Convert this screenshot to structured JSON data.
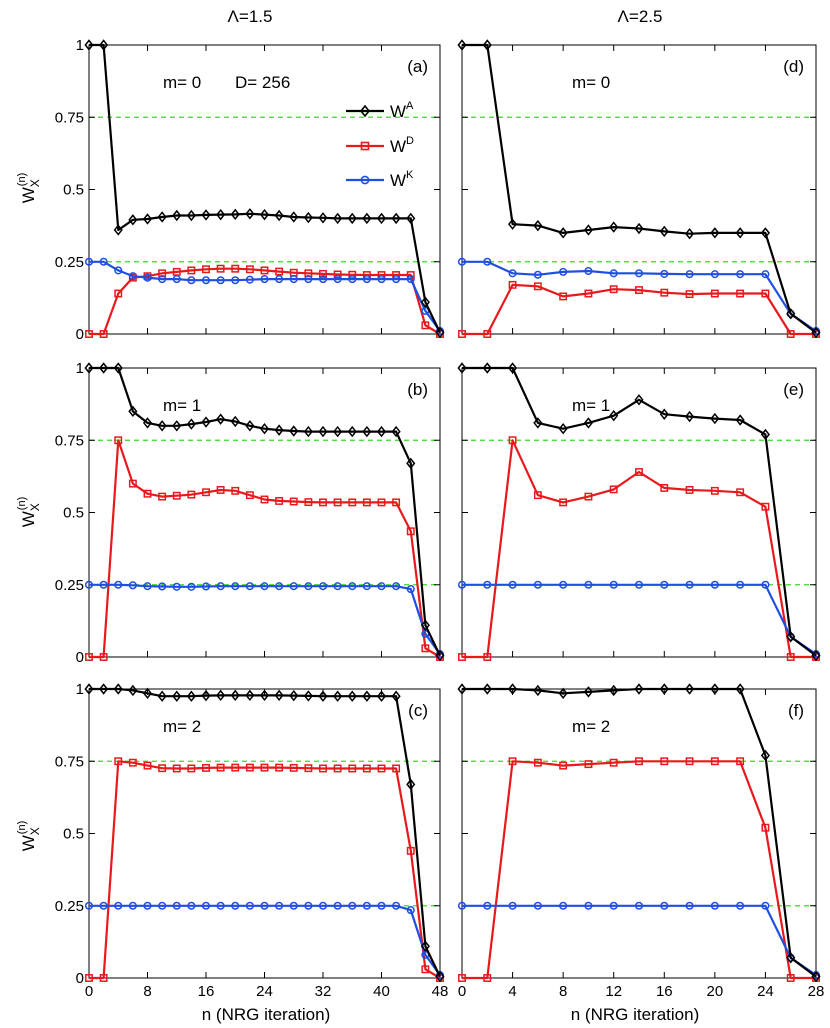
{
  "chart_data": {
    "type": "line",
    "column_titles": [
      "Λ=1.5",
      "Λ=2.5"
    ],
    "ylabel": "W",
    "ylabel_sub": "X",
    "ylabel_sup": "(n)",
    "xlabel": "n  (NRG iteration)",
    "reference_lines": [
      0.25,
      0.75
    ],
    "legend": {
      "entries": [
        {
          "name": "W",
          "sup": "A",
          "color": "#000000",
          "marker": "diamond"
        },
        {
          "name": "W",
          "sup": "D",
          "color": "#e8191c",
          "marker": "square"
        },
        {
          "name": "W",
          "sup": "K",
          "color": "#1f4fe0",
          "marker": "circle"
        }
      ]
    },
    "panels": [
      {
        "label": "(a)",
        "m_label": "m= 0",
        "extra_label": "D= 256",
        "xlim": [
          0,
          48
        ],
        "xticks": [
          "0",
          "8",
          "16",
          "24",
          "32",
          "40",
          "48"
        ],
        "ylim": [
          0,
          1
        ],
        "yticks": [
          "0",
          "0.25",
          "0.5",
          "0.75",
          "1"
        ],
        "x": [
          0,
          2,
          4,
          6,
          8,
          10,
          12,
          14,
          16,
          18,
          20,
          22,
          24,
          26,
          28,
          30,
          32,
          34,
          36,
          38,
          40,
          42,
          44,
          46,
          48
        ],
        "series": [
          {
            "name": "WA",
            "values": [
              1,
              1,
              0.36,
              0.395,
              0.398,
              0.405,
              0.41,
              0.41,
              0.412,
              0.413,
              0.414,
              0.416,
              0.413,
              0.41,
              0.405,
              0.403,
              0.402,
              0.4,
              0.4,
              0.4,
              0.4,
              0.4,
              0.4,
              0.11,
              0.005
            ]
          },
          {
            "name": "WD",
            "values": [
              0,
              0,
              0.14,
              0.195,
              0.2,
              0.21,
              0.215,
              0.22,
              0.224,
              0.226,
              0.226,
              0.224,
              0.22,
              0.216,
              0.212,
              0.21,
              0.208,
              0.206,
              0.205,
              0.204,
              0.204,
              0.204,
              0.204,
              0.03,
              0
            ]
          },
          {
            "name": "WK",
            "values": [
              0.25,
              0.25,
              0.22,
              0.2,
              0.195,
              0.19,
              0.19,
              0.186,
              0.186,
              0.186,
              0.186,
              0.188,
              0.19,
              0.19,
              0.19,
              0.19,
              0.19,
              0.19,
              0.19,
              0.19,
              0.19,
              0.19,
              0.19,
              0.08,
              0.01
            ]
          }
        ]
      },
      {
        "label": "(b)",
        "m_label": "m= 1",
        "extra_label": "",
        "xlim": [
          0,
          48
        ],
        "xticks": [
          "0",
          "8",
          "16",
          "24",
          "32",
          "40",
          "48"
        ],
        "ylim": [
          0,
          1
        ],
        "yticks": [
          "0",
          "0.25",
          "0.5",
          "0.75",
          "1"
        ],
        "x": [
          0,
          2,
          4,
          6,
          8,
          10,
          12,
          14,
          16,
          18,
          20,
          22,
          24,
          26,
          28,
          30,
          32,
          34,
          36,
          38,
          40,
          42,
          44,
          46,
          48
        ],
        "series": [
          {
            "name": "WA",
            "values": [
              1,
              1,
              1,
              0.85,
              0.81,
              0.8,
              0.8,
              0.806,
              0.813,
              0.823,
              0.815,
              0.8,
              0.79,
              0.785,
              0.782,
              0.78,
              0.78,
              0.78,
              0.78,
              0.78,
              0.78,
              0.78,
              0.67,
              0.11,
              0.005
            ]
          },
          {
            "name": "WD",
            "values": [
              0,
              0,
              0.75,
              0.6,
              0.565,
              0.555,
              0.558,
              0.562,
              0.57,
              0.578,
              0.575,
              0.56,
              0.545,
              0.54,
              0.538,
              0.536,
              0.535,
              0.535,
              0.535,
              0.535,
              0.535,
              0.535,
              0.435,
              0.03,
              0
            ]
          },
          {
            "name": "WK",
            "values": [
              0.25,
              0.25,
              0.25,
              0.248,
              0.245,
              0.244,
              0.243,
              0.243,
              0.244,
              0.245,
              0.245,
              0.245,
              0.245,
              0.245,
              0.245,
              0.245,
              0.245,
              0.245,
              0.245,
              0.245,
              0.245,
              0.245,
              0.235,
              0.08,
              0.01
            ]
          }
        ]
      },
      {
        "label": "(c)",
        "m_label": "m= 2",
        "extra_label": "",
        "xlim": [
          0,
          48
        ],
        "xticks": [
          "0",
          "8",
          "16",
          "24",
          "32",
          "40",
          "48"
        ],
        "ylim": [
          0,
          1
        ],
        "yticks": [
          "0",
          "0.25",
          "0.5",
          "0.75",
          "1"
        ],
        "x": [
          0,
          2,
          4,
          6,
          8,
          10,
          12,
          14,
          16,
          18,
          20,
          22,
          24,
          26,
          28,
          30,
          32,
          34,
          36,
          38,
          40,
          42,
          44,
          46,
          48
        ],
        "series": [
          {
            "name": "WA",
            "values": [
              1,
              1,
              1,
              0.995,
              0.985,
              0.975,
              0.975,
              0.975,
              0.977,
              0.978,
              0.978,
              0.978,
              0.978,
              0.978,
              0.977,
              0.976,
              0.975,
              0.975,
              0.975,
              0.975,
              0.975,
              0.975,
              0.67,
              0.11,
              0.005
            ]
          },
          {
            "name": "WD",
            "values": [
              0,
              0,
              0.75,
              0.745,
              0.735,
              0.726,
              0.725,
              0.725,
              0.727,
              0.728,
              0.728,
              0.728,
              0.728,
              0.728,
              0.727,
              0.726,
              0.725,
              0.725,
              0.725,
              0.725,
              0.725,
              0.725,
              0.44,
              0.03,
              0
            ]
          },
          {
            "name": "WK",
            "values": [
              0.25,
              0.25,
              0.25,
              0.25,
              0.25,
              0.25,
              0.25,
              0.25,
              0.25,
              0.25,
              0.25,
              0.25,
              0.25,
              0.25,
              0.25,
              0.25,
              0.25,
              0.25,
              0.25,
              0.25,
              0.25,
              0.25,
              0.235,
              0.08,
              0.01
            ]
          }
        ]
      },
      {
        "label": "(d)",
        "m_label": "m= 0",
        "extra_label": "",
        "xlim": [
          0,
          28
        ],
        "xticks": [
          "0",
          "4",
          "8",
          "12",
          "16",
          "20",
          "24",
          "28"
        ],
        "ylim": [
          0,
          1
        ],
        "yticks": [
          "0",
          "0.25",
          "0.5",
          "0.75",
          "1"
        ],
        "x": [
          0,
          2,
          4,
          6,
          8,
          10,
          12,
          14,
          16,
          18,
          20,
          22,
          24,
          26,
          28
        ],
        "series": [
          {
            "name": "WA",
            "values": [
              1,
              1,
              0.38,
              0.375,
              0.35,
              0.36,
              0.37,
              0.365,
              0.355,
              0.347,
              0.35,
              0.35,
              0.35,
              0.07,
              0.005
            ]
          },
          {
            "name": "WD",
            "values": [
              0,
              0,
              0.17,
              0.165,
              0.13,
              0.14,
              0.155,
              0.152,
              0.143,
              0.138,
              0.14,
              0.14,
              0.14,
              0,
              0
            ]
          },
          {
            "name": "WK",
            "values": [
              0.25,
              0.25,
              0.21,
              0.205,
              0.215,
              0.218,
              0.21,
              0.21,
              0.208,
              0.207,
              0.207,
              0.207,
              0.207,
              0.07,
              0.01
            ]
          }
        ]
      },
      {
        "label": "(e)",
        "m_label": "m= 1",
        "extra_label": "",
        "xlim": [
          0,
          28
        ],
        "xticks": [
          "0",
          "4",
          "8",
          "12",
          "16",
          "20",
          "24",
          "28"
        ],
        "ylim": [
          0,
          1
        ],
        "yticks": [
          "0",
          "0.25",
          "0.5",
          "0.75",
          "1"
        ],
        "x": [
          0,
          2,
          4,
          6,
          8,
          10,
          12,
          14,
          16,
          18,
          20,
          22,
          24,
          26,
          28
        ],
        "series": [
          {
            "name": "WA",
            "values": [
              1,
              1,
              1,
              0.81,
              0.79,
              0.81,
              0.835,
              0.89,
              0.84,
              0.832,
              0.825,
              0.82,
              0.77,
              0.07,
              0.005
            ]
          },
          {
            "name": "WD",
            "values": [
              0,
              0,
              0.75,
              0.56,
              0.535,
              0.555,
              0.58,
              0.64,
              0.585,
              0.578,
              0.575,
              0.57,
              0.52,
              0,
              0
            ]
          },
          {
            "name": "WK",
            "values": [
              0.25,
              0.25,
              0.25,
              0.25,
              0.25,
              0.25,
              0.25,
              0.25,
              0.25,
              0.25,
              0.25,
              0.25,
              0.25,
              0.07,
              0.01
            ]
          }
        ]
      },
      {
        "label": "(f)",
        "m_label": "m= 2",
        "extra_label": "",
        "xlim": [
          0,
          28
        ],
        "xticks": [
          "0",
          "4",
          "8",
          "12",
          "16",
          "20",
          "24",
          "28"
        ],
        "ylim": [
          0,
          1
        ],
        "yticks": [
          "0",
          "0.25",
          "0.5",
          "0.75",
          "1"
        ],
        "x": [
          0,
          2,
          4,
          6,
          8,
          10,
          12,
          14,
          16,
          18,
          20,
          22,
          24,
          26,
          28
        ],
        "series": [
          {
            "name": "WA",
            "values": [
              1,
              1,
              1,
              0.995,
              0.985,
              0.99,
              0.995,
              1,
              1,
              1,
              1,
              1,
              0.77,
              0.07,
              0.005
            ]
          },
          {
            "name": "WD",
            "values": [
              0,
              0,
              0.75,
              0.745,
              0.735,
              0.74,
              0.745,
              0.75,
              0.75,
              0.75,
              0.75,
              0.75,
              0.52,
              0,
              0
            ]
          },
          {
            "name": "WK",
            "values": [
              0.25,
              0.25,
              0.25,
              0.25,
              0.25,
              0.25,
              0.25,
              0.25,
              0.25,
              0.25,
              0.25,
              0.25,
              0.25,
              0.07,
              0.01
            ]
          }
        ]
      }
    ]
  }
}
